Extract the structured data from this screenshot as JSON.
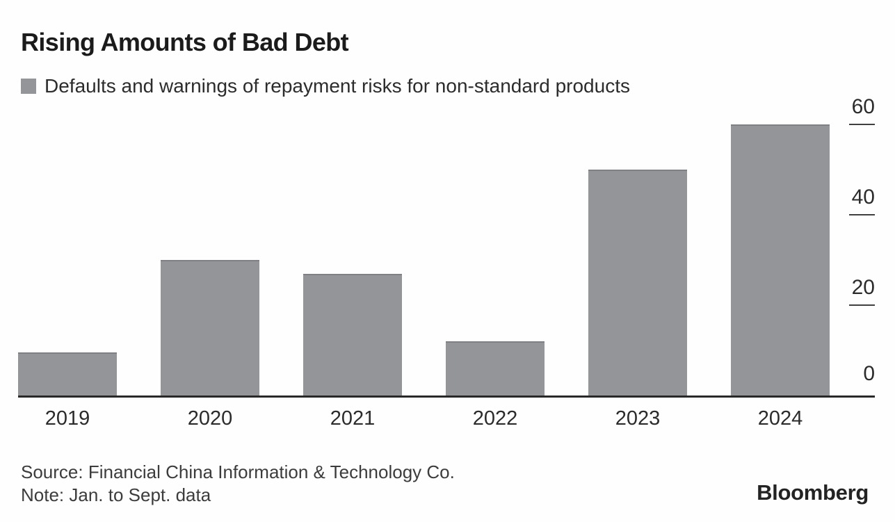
{
  "header": {
    "title": "Rising Amounts of Bad Debt"
  },
  "legend": {
    "label": "Defaults and warnings of repayment risks for non-standard products",
    "swatch_color": "#939598"
  },
  "chart_data": {
    "type": "bar",
    "categories": [
      "2019",
      "2020",
      "2021",
      "2022",
      "2023",
      "2024"
    ],
    "values": [
      9.5,
      30,
      27,
      12,
      50,
      60
    ],
    "series_name": "Defaults and warnings of repayment risks for non-standard products",
    "title": "Rising Amounts of Bad Debt",
    "xlabel": "",
    "ylabel": "",
    "ylim": [
      0,
      65
    ],
    "yticks": [
      0,
      20,
      40,
      60
    ],
    "ytick_side": "right",
    "grid": false,
    "legend_position": "top-left",
    "bar_color": "#939598",
    "bar_top_edge_color": "#7e8083",
    "axis_color": "#282828"
  },
  "footer": {
    "source": "Source: Financial China Information & Technology Co.",
    "note": "Note: Jan. to Sept. data",
    "brand": "Bloomberg"
  },
  "colors": {
    "background": "#fefefe",
    "title_text": "#1b1b1b",
    "tick_text": "#2b2b2b",
    "footer_text": "#3c3c3c"
  }
}
